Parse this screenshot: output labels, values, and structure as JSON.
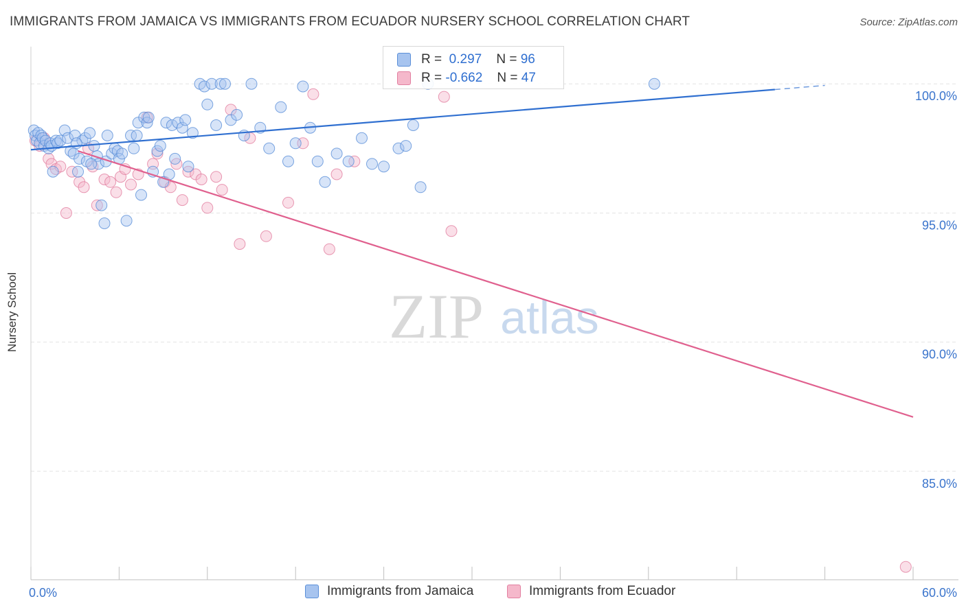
{
  "header": {
    "title": "IMMIGRANTS FROM JAMAICA VS IMMIGRANTS FROM ECUADOR NURSERY SCHOOL CORRELATION CHART",
    "source": "Source: ZipAtlas.com"
  },
  "watermark": {
    "zip": "ZIP",
    "atlas": "atlas"
  },
  "colors": {
    "jamaica_fill": "#a7c4ef",
    "jamaica_stroke": "#5a8fd8",
    "jamaica_line": "#2f6fd0",
    "ecuador_fill": "#f5b8cb",
    "ecuador_stroke": "#e27fa0",
    "ecuador_line": "#e0608e",
    "axis_label": "#3a74cc",
    "grid": "#e3e3e3"
  },
  "stats": {
    "r_label": "R =",
    "n_label": "N =",
    "rows": [
      {
        "series": "Immigrants from Jamaica",
        "r": "0.297",
        "n": "96"
      },
      {
        "series": "Immigrants from Ecuador",
        "r": "-0.662",
        "n": "47"
      }
    ]
  },
  "chart_data": {
    "type": "scatter",
    "title": "IMMIGRANTS FROM JAMAICA VS IMMIGRANTS FROM ECUADOR NURSERY SCHOOL CORRELATION CHART",
    "xlabel": "",
    "ylabel": "Nursery School",
    "xlim": [
      0,
      60
    ],
    "ylim": [
      80.8,
      101.6
    ],
    "x_tick_labels": [
      {
        "value": 0,
        "label": "0.0%"
      },
      {
        "value": 60,
        "label": "60.0%"
      }
    ],
    "y_tick_labels": [
      {
        "value": 100,
        "label": "100.0%"
      },
      {
        "value": 95,
        "label": "95.0%"
      },
      {
        "value": 90,
        "label": "90.0%"
      },
      {
        "value": 85,
        "label": "85.0%"
      }
    ],
    "grid": true,
    "legend": [
      "Immigrants from Jamaica",
      "Immigrants from Ecuador"
    ],
    "series": [
      {
        "name": "Immigrants from Jamaica",
        "r": 0.297,
        "n": 96,
        "trend": {
          "x_start": 0,
          "y_start": 97.45,
          "x_end": 50.6,
          "y_end": 99.78,
          "dash_to_x": 54.0,
          "dash_to_y": 99.94
        },
        "points": [
          [
            0.2,
            98.2
          ],
          [
            0.3,
            98.0
          ],
          [
            0.4,
            97.8
          ],
          [
            0.5,
            98.1
          ],
          [
            0.6,
            97.7
          ],
          [
            0.7,
            98.0
          ],
          [
            0.8,
            97.9
          ],
          [
            0.9,
            97.6
          ],
          [
            1.0,
            97.8
          ],
          [
            1.2,
            97.5
          ],
          [
            1.3,
            97.7
          ],
          [
            1.4,
            97.6
          ],
          [
            1.5,
            96.6
          ],
          [
            1.7,
            97.8
          ],
          [
            1.8,
            97.7
          ],
          [
            2.0,
            97.8
          ],
          [
            2.3,
            98.2
          ],
          [
            2.5,
            97.9
          ],
          [
            2.7,
            97.4
          ],
          [
            2.9,
            97.3
          ],
          [
            3.0,
            98.0
          ],
          [
            3.2,
            96.6
          ],
          [
            3.3,
            97.1
          ],
          [
            3.5,
            97.8
          ],
          [
            3.7,
            97.9
          ],
          [
            3.8,
            97.0
          ],
          [
            4.0,
            98.1
          ],
          [
            4.3,
            97.6
          ],
          [
            4.5,
            97.2
          ],
          [
            4.6,
            96.9
          ],
          [
            4.8,
            95.3
          ],
          [
            5.0,
            94.6
          ],
          [
            5.1,
            97.0
          ],
          [
            5.2,
            98.0
          ],
          [
            5.5,
            97.3
          ],
          [
            5.7,
            97.5
          ],
          [
            5.9,
            97.4
          ],
          [
            6.0,
            97.1
          ],
          [
            6.2,
            97.3
          ],
          [
            6.5,
            94.7
          ],
          [
            6.8,
            98.0
          ],
          [
            7.0,
            97.5
          ],
          [
            7.3,
            98.5
          ],
          [
            7.5,
            95.7
          ],
          [
            7.7,
            98.7
          ],
          [
            7.9,
            98.5
          ],
          [
            8.0,
            98.7
          ],
          [
            8.3,
            96.6
          ],
          [
            8.6,
            97.4
          ],
          [
            8.8,
            97.6
          ],
          [
            9.0,
            96.2
          ],
          [
            9.2,
            98.5
          ],
          [
            9.4,
            96.5
          ],
          [
            9.6,
            98.4
          ],
          [
            10.0,
            98.5
          ],
          [
            10.3,
            98.3
          ],
          [
            10.5,
            98.6
          ],
          [
            10.7,
            96.8
          ],
          [
            11.0,
            98.1
          ],
          [
            11.5,
            100.0
          ],
          [
            11.8,
            99.9
          ],
          [
            12.0,
            99.2
          ],
          [
            12.3,
            100.0
          ],
          [
            12.6,
            98.4
          ],
          [
            12.9,
            100.0
          ],
          [
            13.2,
            100.0
          ],
          [
            13.6,
            98.6
          ],
          [
            14.0,
            98.8
          ],
          [
            14.5,
            98.0
          ],
          [
            15.0,
            100.0
          ],
          [
            15.6,
            98.3
          ],
          [
            16.2,
            97.5
          ],
          [
            17.0,
            99.1
          ],
          [
            17.5,
            97.0
          ],
          [
            18.0,
            97.7
          ],
          [
            18.5,
            99.9
          ],
          [
            19.0,
            98.3
          ],
          [
            19.5,
            97.0
          ],
          [
            20.0,
            96.2
          ],
          [
            20.8,
            97.3
          ],
          [
            21.6,
            97.0
          ],
          [
            22.5,
            97.9
          ],
          [
            23.2,
            96.9
          ],
          [
            24.0,
            96.8
          ],
          [
            25.0,
            97.5
          ],
          [
            25.5,
            97.6
          ],
          [
            26.0,
            98.4
          ],
          [
            26.5,
            96.0
          ],
          [
            27.0,
            100.0
          ],
          [
            7.2,
            98.0
          ],
          [
            9.8,
            97.1
          ],
          [
            4.1,
            96.9
          ],
          [
            3.1,
            97.7
          ],
          [
            42.4,
            100.0
          ]
        ]
      },
      {
        "name": "Immigrants from Ecuador",
        "r": -0.662,
        "n": 47,
        "trend": {
          "x_start": 3.2,
          "y_start": 97.4,
          "x_end": 60,
          "y_end": 87.1
        },
        "points": [
          [
            0.3,
            97.8
          ],
          [
            0.6,
            97.6
          ],
          [
            0.9,
            97.9
          ],
          [
            1.2,
            97.1
          ],
          [
            1.4,
            96.9
          ],
          [
            1.7,
            96.7
          ],
          [
            2.0,
            96.8
          ],
          [
            2.4,
            95.0
          ],
          [
            2.8,
            96.6
          ],
          [
            3.3,
            96.2
          ],
          [
            3.6,
            96.0
          ],
          [
            3.9,
            97.5
          ],
          [
            4.2,
            96.8
          ],
          [
            4.5,
            95.3
          ],
          [
            5.0,
            96.3
          ],
          [
            5.4,
            96.2
          ],
          [
            5.8,
            95.8
          ],
          [
            6.1,
            96.4
          ],
          [
            6.4,
            96.7
          ],
          [
            6.8,
            96.1
          ],
          [
            7.3,
            96.5
          ],
          [
            7.9,
            98.7
          ],
          [
            8.3,
            96.9
          ],
          [
            8.6,
            97.3
          ],
          [
            9.1,
            96.2
          ],
          [
            9.5,
            96.0
          ],
          [
            9.9,
            96.9
          ],
          [
            10.3,
            95.5
          ],
          [
            10.7,
            96.6
          ],
          [
            11.2,
            96.5
          ],
          [
            11.6,
            96.3
          ],
          [
            12.0,
            95.2
          ],
          [
            12.6,
            96.4
          ],
          [
            13.0,
            95.9
          ],
          [
            13.6,
            99.0
          ],
          [
            14.2,
            93.8
          ],
          [
            14.9,
            97.9
          ],
          [
            16.0,
            94.1
          ],
          [
            17.5,
            95.4
          ],
          [
            18.5,
            97.7
          ],
          [
            19.2,
            99.6
          ],
          [
            20.3,
            93.6
          ],
          [
            20.8,
            96.5
          ],
          [
            22.0,
            97.0
          ],
          [
            28.1,
            99.5
          ],
          [
            28.6,
            94.3
          ],
          [
            59.5,
            81.3
          ]
        ]
      }
    ]
  }
}
